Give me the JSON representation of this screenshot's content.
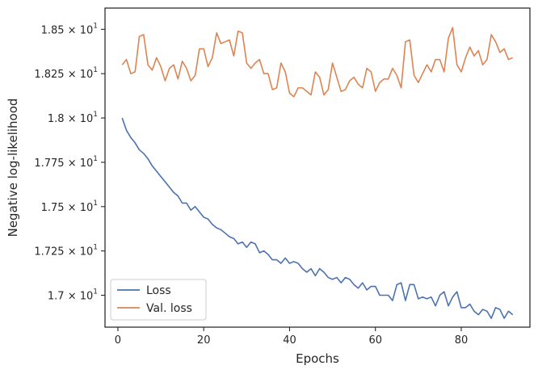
{
  "chart_data": {
    "type": "line",
    "xlabel": "Epochs",
    "ylabel": "Negative log-likelihood",
    "xlim": [
      -3,
      96
    ],
    "ylim": [
      16.82,
      18.62
    ],
    "xticks": [
      0,
      20,
      40,
      60,
      80
    ],
    "xtick_labels": [
      "0",
      "20",
      "40",
      "60",
      "80"
    ],
    "yticks": [
      17.0,
      17.25,
      17.5,
      17.75,
      18.0,
      18.25,
      18.5
    ],
    "ytick_labels": [
      {
        "mantissa": "1.7",
        "exp": "1"
      },
      {
        "mantissa": "1.725",
        "exp": "1"
      },
      {
        "mantissa": "1.75",
        "exp": "1"
      },
      {
        "mantissa": "1.775",
        "exp": "1"
      },
      {
        "mantissa": "1.8",
        "exp": "1"
      },
      {
        "mantissa": "1.825",
        "exp": "1"
      },
      {
        "mantissa": "1.85",
        "exp": "1"
      }
    ],
    "legend_position": "lower-left",
    "grid": false,
    "series": [
      {
        "name": "Loss",
        "color": "#4c72b0",
        "x": [
          1,
          2,
          3,
          4,
          5,
          6,
          7,
          8,
          9,
          10,
          11,
          12,
          13,
          14,
          15,
          16,
          17,
          18,
          19,
          20,
          21,
          22,
          23,
          24,
          25,
          26,
          27,
          28,
          29,
          30,
          31,
          32,
          33,
          34,
          35,
          36,
          37,
          38,
          39,
          40,
          41,
          42,
          43,
          44,
          45,
          46,
          47,
          48,
          49,
          50,
          51,
          52,
          53,
          54,
          55,
          56,
          57,
          58,
          59,
          60,
          61,
          62,
          63,
          64,
          65,
          66,
          67,
          68,
          69,
          70,
          71,
          72,
          73,
          74,
          75,
          76,
          77,
          78,
          79,
          80,
          81,
          82,
          83,
          84,
          85,
          86,
          87,
          88,
          89,
          90,
          91,
          92
        ],
        "values": [
          18.0,
          17.93,
          17.89,
          17.86,
          17.82,
          17.8,
          17.77,
          17.73,
          17.7,
          17.67,
          17.64,
          17.61,
          17.58,
          17.56,
          17.52,
          17.52,
          17.48,
          17.5,
          17.47,
          17.44,
          17.43,
          17.4,
          17.38,
          17.37,
          17.35,
          17.33,
          17.32,
          17.29,
          17.3,
          17.27,
          17.3,
          17.29,
          17.24,
          17.25,
          17.23,
          17.2,
          17.2,
          17.18,
          17.21,
          17.18,
          17.19,
          17.18,
          17.15,
          17.13,
          17.15,
          17.11,
          17.15,
          17.13,
          17.1,
          17.09,
          17.1,
          17.07,
          17.1,
          17.09,
          17.06,
          17.04,
          17.07,
          17.03,
          17.05,
          17.05,
          17.0,
          17.0,
          17.0,
          16.97,
          17.06,
          17.07,
          16.97,
          17.06,
          17.06,
          16.98,
          16.99,
          16.98,
          16.99,
          16.94,
          17.0,
          17.02,
          16.94,
          16.99,
          17.02,
          16.93,
          16.93,
          16.95,
          16.91,
          16.89,
          16.92,
          16.91,
          16.87,
          16.93,
          16.92,
          16.87,
          16.91,
          16.89
        ]
      },
      {
        "name": "Val. loss",
        "color": "#dd8452",
        "x": [
          1,
          2,
          3,
          4,
          5,
          6,
          7,
          8,
          9,
          10,
          11,
          12,
          13,
          14,
          15,
          16,
          17,
          18,
          19,
          20,
          21,
          22,
          23,
          24,
          25,
          26,
          27,
          28,
          29,
          30,
          31,
          32,
          33,
          34,
          35,
          36,
          37,
          38,
          39,
          40,
          41,
          42,
          43,
          44,
          45,
          46,
          47,
          48,
          49,
          50,
          51,
          52,
          53,
          54,
          55,
          56,
          57,
          58,
          59,
          60,
          61,
          62,
          63,
          64,
          65,
          66,
          67,
          68,
          69,
          70,
          71,
          72,
          73,
          74,
          75,
          76,
          77,
          78,
          79,
          80,
          81,
          82,
          83,
          84,
          85,
          86,
          87,
          88,
          89,
          90,
          91,
          92
        ],
        "values": [
          18.3,
          18.33,
          18.25,
          18.26,
          18.46,
          18.47,
          18.3,
          18.27,
          18.34,
          18.29,
          18.21,
          18.28,
          18.3,
          18.22,
          18.32,
          18.28,
          18.21,
          18.24,
          18.39,
          18.39,
          18.29,
          18.34,
          18.48,
          18.42,
          18.43,
          18.44,
          18.35,
          18.49,
          18.48,
          18.31,
          18.28,
          18.31,
          18.33,
          18.25,
          18.25,
          18.16,
          18.17,
          18.31,
          18.26,
          18.14,
          18.12,
          18.17,
          18.17,
          18.15,
          18.13,
          18.26,
          18.23,
          18.13,
          18.16,
          18.31,
          18.23,
          18.15,
          18.16,
          18.21,
          18.23,
          18.19,
          18.17,
          18.28,
          18.26,
          18.15,
          18.2,
          18.22,
          18.22,
          18.28,
          18.24,
          18.17,
          18.43,
          18.44,
          18.24,
          18.2,
          18.25,
          18.3,
          18.26,
          18.33,
          18.33,
          18.26,
          18.45,
          18.51,
          18.3,
          18.26,
          18.34,
          18.4,
          18.35,
          18.38,
          18.3,
          18.33,
          18.47,
          18.43,
          18.37,
          18.39,
          18.33,
          18.34
        ]
      }
    ]
  }
}
